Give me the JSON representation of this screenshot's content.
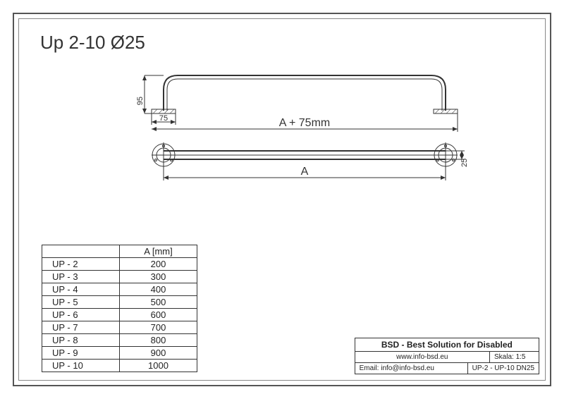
{
  "title": "Up 2-10 Ø25",
  "colors": {
    "frame": "#555555",
    "inner_frame": "#888888",
    "stroke": "#333333",
    "text": "#333333",
    "background": "#ffffff"
  },
  "typography": {
    "title_fontsize": 26,
    "dim_small_fontsize": 11,
    "dim_large_fontsize": 16,
    "table_fontsize": 13,
    "titleblock_fontsize": 10
  },
  "drawing": {
    "side_view": {
      "dim_height_label": "95",
      "dim_base_label": "75",
      "length_label": "A + 75mm"
    },
    "front_view": {
      "length_label": "A",
      "diameter_label": "25"
    }
  },
  "spec_table": {
    "header_model": "",
    "header_value": "A [mm]",
    "rows": [
      {
        "model": "UP - 2",
        "value": "200"
      },
      {
        "model": "UP - 3",
        "value": "300"
      },
      {
        "model": "UP - 4",
        "value": "400"
      },
      {
        "model": "UP - 5",
        "value": "500"
      },
      {
        "model": "UP - 6",
        "value": "600"
      },
      {
        "model": "UP - 7",
        "value": "700"
      },
      {
        "model": "UP - 8",
        "value": "800"
      },
      {
        "model": "UP - 9",
        "value": "900"
      },
      {
        "model": "UP - 10",
        "value": "1000"
      }
    ]
  },
  "title_block": {
    "company": "BSD - Best Solution for Disabled",
    "website": "www.info-bsd.eu",
    "scale_label": "Skala:",
    "scale_value": "1:5",
    "email_label": "Email:",
    "email_value": "info@info-bsd.eu",
    "partno": "UP-2 - UP-10 DN25"
  }
}
